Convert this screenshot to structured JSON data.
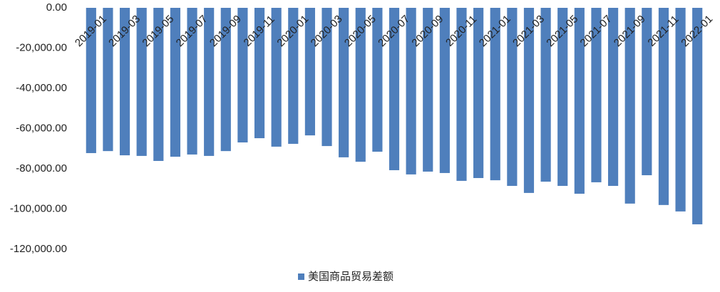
{
  "chart_data": {
    "type": "bar",
    "categories": [
      "2019-01",
      null,
      "2019-03",
      null,
      "2019-05",
      null,
      "2019-07",
      null,
      "2019-09",
      null,
      "2019-11",
      null,
      "2020-01",
      null,
      "2020-03",
      null,
      "2020-05",
      null,
      "2020-07",
      null,
      "2020-09",
      null,
      "2020-11",
      null,
      "2021-01",
      null,
      "2021-03",
      null,
      "2021-05",
      null,
      "2021-07",
      null,
      "2021-09",
      null,
      "2021-11",
      null,
      "2022-01"
    ],
    "series": [
      {
        "name": "美国商品贸易差额",
        "color": "#4f7fbc",
        "values": [
          -72200,
          -71200,
          -73300,
          -73600,
          -76100,
          -74000,
          -72900,
          -73600,
          -71200,
          -66900,
          -64800,
          -69000,
          -67600,
          -63400,
          -68700,
          -74300,
          -76500,
          -71500,
          -80700,
          -82800,
          -81400,
          -82100,
          -86000,
          -84600,
          -85700,
          -88500,
          -92000,
          -86400,
          -88500,
          -92400,
          -86700,
          -88500,
          -97300,
          -83200,
          -98000,
          -101200,
          -107600
        ]
      }
    ],
    "ylim": [
      -120000,
      0
    ],
    "yticks": [
      {
        "value": 0,
        "label": "0.00"
      },
      {
        "value": -20000,
        "label": "-20,000.00"
      },
      {
        "value": -40000,
        "label": "-40,000.00"
      },
      {
        "value": -60000,
        "label": "-60,000.00"
      },
      {
        "value": -80000,
        "label": "-80,000.00"
      },
      {
        "value": -100000,
        "label": "-100,000.00"
      },
      {
        "value": -120000,
        "label": "-120,000.00"
      }
    ],
    "legend": "bottom"
  }
}
